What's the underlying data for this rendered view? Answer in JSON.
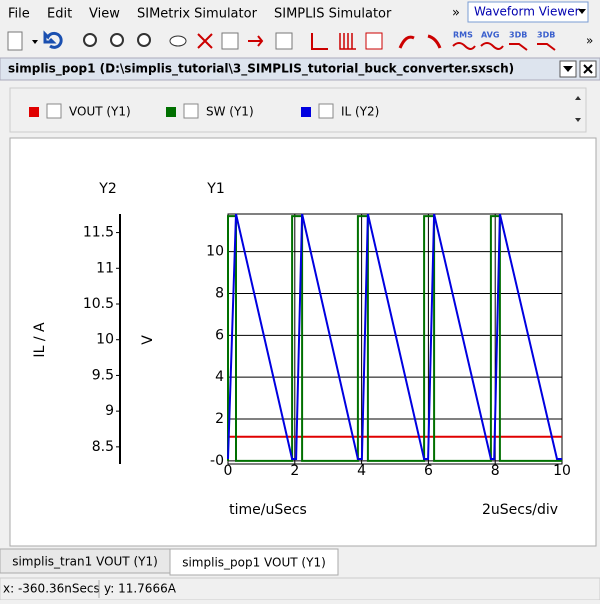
{
  "menu": [
    "File",
    "Edit",
    "View",
    "SIMetrix Simulator",
    "SIMPLIS Simulator"
  ],
  "menu_more": "»",
  "view_selector": "Waveform Viewer",
  "toolbar": {
    "labels": [
      "RMS",
      "AVG",
      "3DB",
      "3DB"
    ],
    "more": "»"
  },
  "window_title": "simplis_pop1 (D:\\simplis_tutorial\\3_SIMPLIS_tutorial_buck_converter.sxsch)",
  "chart_data": {
    "type": "line",
    "y2_axis_name": "Y2",
    "y_axis_name": "Y1",
    "y2_label": "IL / A",
    "y_label": "V",
    "x_label": "time/uSecs",
    "x_scale_note": "2uSecs/div",
    "xlim": [
      0,
      10
    ],
    "xticks": [
      0,
      2,
      4,
      6,
      8,
      10
    ],
    "ylim": [
      -0.15,
      11.8
    ],
    "yticks": [
      {
        "value": 0,
        "label": "-0"
      },
      2,
      4,
      6,
      8,
      10
    ],
    "y2lim": [
      8.26,
      11.76
    ],
    "y2ticks": [
      8.5,
      9,
      9.5,
      10,
      10.5,
      11,
      11.5
    ],
    "grid": true,
    "series": [
      {
        "name": "VOUT (Y1)",
        "color": "#e00000",
        "x": [
          0,
          10
        ],
        "values": [
          1.15,
          1.15
        ]
      },
      {
        "name": "SW (Y1)",
        "color": "#007000",
        "x": [
          0,
          0,
          0.24,
          0.24,
          1.92,
          1.92,
          2.22,
          2.22,
          3.89,
          3.89,
          4.19,
          4.19,
          5.87,
          5.87,
          6.17,
          6.17,
          7.87,
          7.87,
          8.14,
          8.14,
          10
        ],
        "values": [
          0,
          11.7,
          11.7,
          0,
          0,
          11.7,
          11.7,
          0,
          0,
          11.7,
          11.7,
          0,
          0,
          11.7,
          11.7,
          0,
          0,
          11.7,
          11.7,
          0,
          0
        ]
      },
      {
        "name": "IL (Y2)",
        "color": "#0000e0",
        "axis": "y2",
        "x": [
          0,
          0.24,
          1.92,
          2.04,
          2.22,
          3.89,
          4.01,
          4.19,
          5.87,
          5.99,
          6.17,
          7.87,
          7.97,
          8.14,
          9.85,
          10
        ],
        "values": [
          8.33,
          11.76,
          8.33,
          8.33,
          11.76,
          8.33,
          8.33,
          11.76,
          8.33,
          8.33,
          11.76,
          8.33,
          8.33,
          11.76,
          8.33,
          8.33
        ]
      }
    ]
  },
  "tabs": [
    "simplis_tran1 VOUT (Y1)",
    "simplis_pop1 VOUT (Y1)"
  ],
  "status": [
    "x: -360.36nSecs",
    "y: 11.7666A"
  ]
}
